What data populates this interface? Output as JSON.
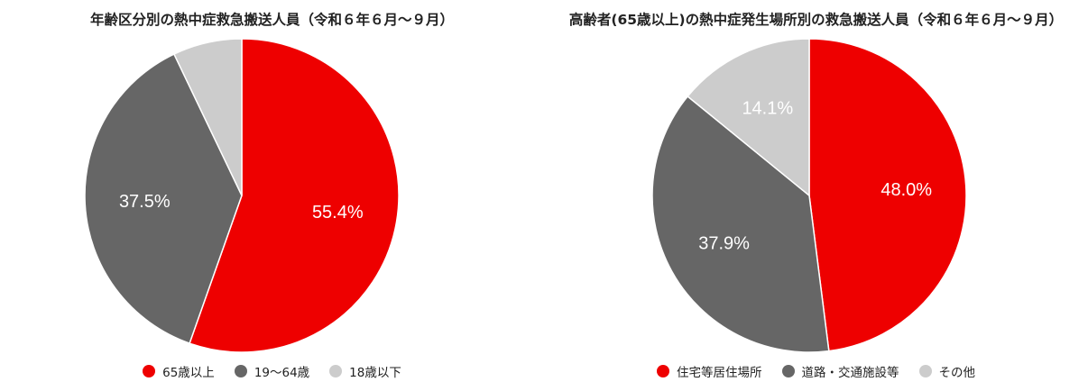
{
  "chart_data": [
    {
      "type": "pie",
      "title": "年齢区分別の熱中症救急搬送人員（令和６年６月～９月）",
      "slices": [
        {
          "name": "65歳以上",
          "value": 55.4,
          "label": "55.4%",
          "color": "#ee0000"
        },
        {
          "name": "19～64歳",
          "value": 37.5,
          "label": "37.5%",
          "color": "#666666"
        },
        {
          "name": "18歳以下",
          "value": 7.1,
          "label": "",
          "color": "#cccccc"
        }
      ],
      "legend_position": "bottom"
    },
    {
      "type": "pie",
      "title": "高齢者(65歳以上)の熱中症発生場所別の救急搬送人員（令和６年６月～９月）",
      "slices": [
        {
          "name": "住宅等居住場所",
          "value": 48.0,
          "label": "48.0%",
          "color": "#ee0000"
        },
        {
          "name": "道路・交通施設等",
          "value": 37.9,
          "label": "37.9%",
          "color": "#666666"
        },
        {
          "name": "その他",
          "value": 14.1,
          "label": "14.1%",
          "color": "#cccccc"
        }
      ],
      "legend_position": "bottom"
    }
  ]
}
